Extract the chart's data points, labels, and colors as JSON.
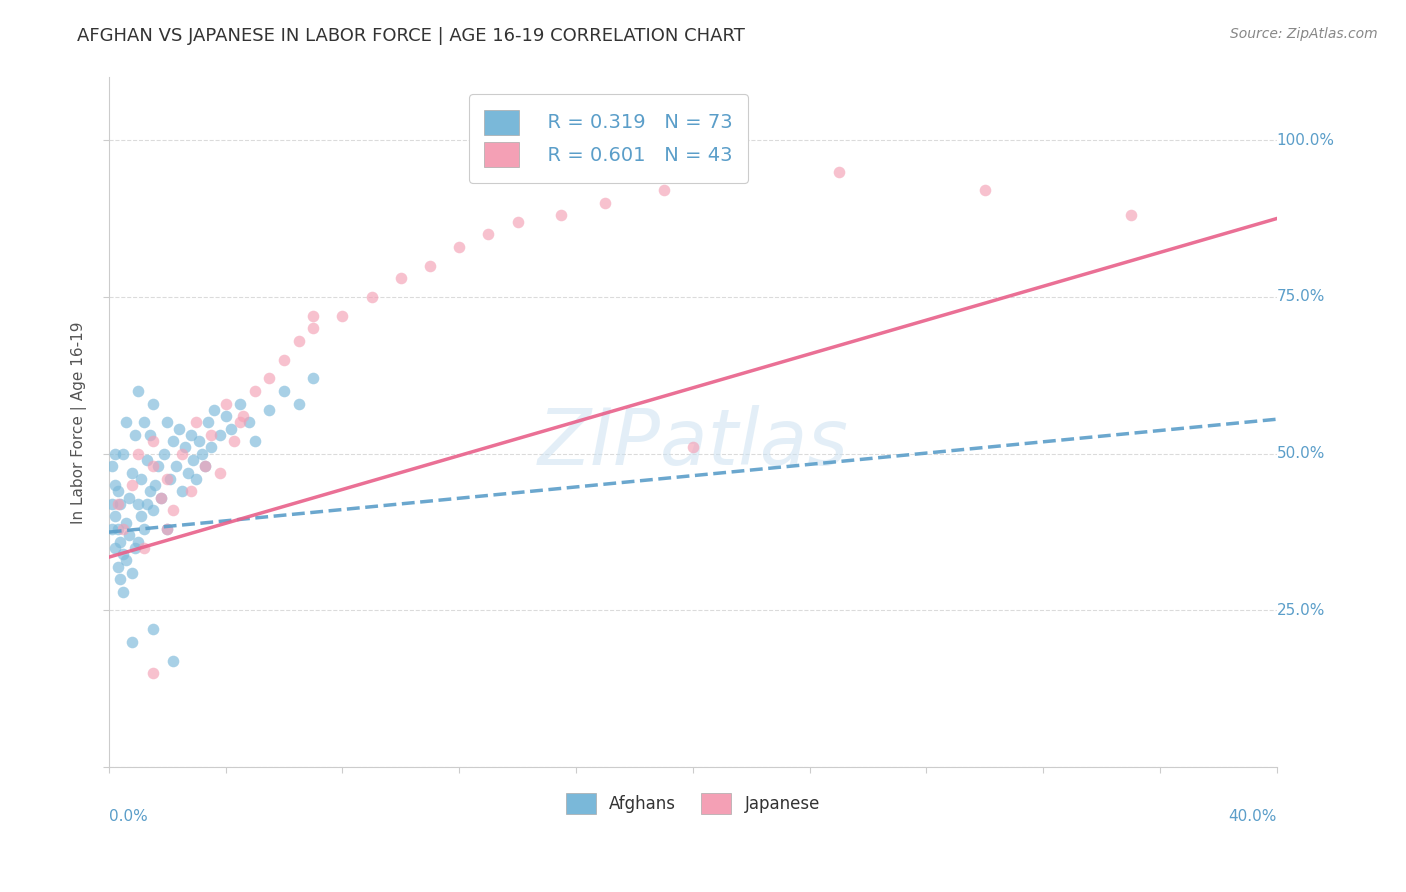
{
  "title": "AFGHAN VS JAPANESE IN LABOR FORCE | AGE 16-19 CORRELATION CHART",
  "source": "Source: ZipAtlas.com",
  "ylabel_label": "In Labor Force | Age 16-19",
  "legend_blue_r": "R = 0.319",
  "legend_blue_n": "N = 73",
  "legend_pink_r": "R = 0.601",
  "legend_pink_n": "N = 43",
  "legend_label_blue": "Afghans",
  "legend_label_pink": "Japanese",
  "watermark": "ZIPatlas",
  "blue_color": "#7ab8d9",
  "pink_color": "#f4a0b5",
  "blue_line_color": "#5b9ec9",
  "pink_line_color": "#e8608a",
  "background_color": "#ffffff",
  "grid_color": "#d8d8d8",
  "title_color": "#333333",
  "axis_label_color": "#5b9ec9",
  "x_min": 0.0,
  "x_max": 0.4,
  "y_min": 0.0,
  "y_max": 1.1,
  "blue_intercept": 0.375,
  "blue_slope": 0.45,
  "pink_intercept": 0.335,
  "pink_slope": 1.35,
  "afghans_x": [
    0.001,
    0.001,
    0.001,
    0.002,
    0.002,
    0.002,
    0.002,
    0.003,
    0.003,
    0.003,
    0.004,
    0.004,
    0.004,
    0.005,
    0.005,
    0.005,
    0.006,
    0.006,
    0.006,
    0.007,
    0.007,
    0.008,
    0.008,
    0.009,
    0.009,
    0.01,
    0.01,
    0.01,
    0.011,
    0.011,
    0.012,
    0.012,
    0.013,
    0.013,
    0.014,
    0.014,
    0.015,
    0.015,
    0.016,
    0.017,
    0.018,
    0.019,
    0.02,
    0.02,
    0.021,
    0.022,
    0.023,
    0.024,
    0.025,
    0.026,
    0.027,
    0.028,
    0.029,
    0.03,
    0.031,
    0.032,
    0.033,
    0.034,
    0.035,
    0.036,
    0.038,
    0.04,
    0.042,
    0.045,
    0.048,
    0.05,
    0.055,
    0.06,
    0.065,
    0.07,
    0.008,
    0.015,
    0.022
  ],
  "afghans_y": [
    0.38,
    0.42,
    0.48,
    0.35,
    0.4,
    0.45,
    0.5,
    0.32,
    0.38,
    0.44,
    0.3,
    0.36,
    0.42,
    0.28,
    0.34,
    0.5,
    0.33,
    0.39,
    0.55,
    0.37,
    0.43,
    0.31,
    0.47,
    0.35,
    0.53,
    0.36,
    0.42,
    0.6,
    0.4,
    0.46,
    0.38,
    0.55,
    0.42,
    0.49,
    0.44,
    0.53,
    0.41,
    0.58,
    0.45,
    0.48,
    0.43,
    0.5,
    0.38,
    0.55,
    0.46,
    0.52,
    0.48,
    0.54,
    0.44,
    0.51,
    0.47,
    0.53,
    0.49,
    0.46,
    0.52,
    0.5,
    0.48,
    0.55,
    0.51,
    0.57,
    0.53,
    0.56,
    0.54,
    0.58,
    0.55,
    0.52,
    0.57,
    0.6,
    0.58,
    0.62,
    0.2,
    0.22,
    0.17
  ],
  "japanese_x": [
    0.003,
    0.005,
    0.008,
    0.01,
    0.012,
    0.015,
    0.015,
    0.018,
    0.02,
    0.022,
    0.025,
    0.028,
    0.03,
    0.033,
    0.035,
    0.038,
    0.04,
    0.043,
    0.046,
    0.05,
    0.055,
    0.06,
    0.065,
    0.07,
    0.08,
    0.09,
    0.1,
    0.11,
    0.12,
    0.13,
    0.14,
    0.155,
    0.17,
    0.19,
    0.21,
    0.25,
    0.3,
    0.35,
    0.02,
    0.045,
    0.07,
    0.2,
    0.015
  ],
  "japanese_y": [
    0.42,
    0.38,
    0.45,
    0.5,
    0.35,
    0.48,
    0.52,
    0.43,
    0.46,
    0.41,
    0.5,
    0.44,
    0.55,
    0.48,
    0.53,
    0.47,
    0.58,
    0.52,
    0.56,
    0.6,
    0.62,
    0.65,
    0.68,
    0.7,
    0.72,
    0.75,
    0.78,
    0.8,
    0.83,
    0.85,
    0.87,
    0.88,
    0.9,
    0.92,
    0.95,
    0.95,
    0.92,
    0.88,
    0.38,
    0.55,
    0.72,
    0.51,
    0.15
  ]
}
